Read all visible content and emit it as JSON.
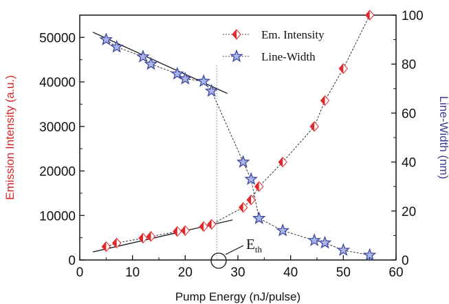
{
  "chart_data": {
    "type": "scatter",
    "title": "",
    "xlabel": "Pump Energy (nJ/pulse)",
    "ylabel_left": "Emission Intensity (a.u.)",
    "ylabel_right": "Line-Width (nm)",
    "xlim": [
      0,
      60
    ],
    "ylim_left": [
      0,
      55000
    ],
    "ylim_right": [
      0,
      100
    ],
    "xticks": [
      "0",
      "10",
      "20",
      "30",
      "40",
      "50",
      "60"
    ],
    "yticks_left": [
      "0",
      "10000",
      "20000",
      "30000",
      "40000",
      "50000"
    ],
    "yticks_right": [
      "0",
      "20",
      "40",
      "60",
      "80",
      "100"
    ],
    "legend_placement": "top-right",
    "grid": false,
    "threshold_x": 26,
    "annotation": {
      "main": "E",
      "sub": "th"
    },
    "colors": {
      "intensity": "#e0272a",
      "linewidth": "#3c48a0",
      "left_label": "#d62728",
      "right_label": "#3c3c8c"
    },
    "series": [
      {
        "name": "Em. Intensity",
        "axis": "left",
        "marker": "diamond",
        "x": [
          5,
          7,
          12,
          13.5,
          18.5,
          20,
          23.5,
          25,
          31,
          32.5,
          34,
          38.5,
          44.5,
          46.5,
          50,
          55
        ],
        "y": [
          3000,
          3800,
          4900,
          5300,
          6400,
          6600,
          7500,
          8000,
          11800,
          13500,
          16500,
          22000,
          30000,
          35800,
          43000,
          55000
        ]
      },
      {
        "name": "Line-Width",
        "axis": "right",
        "marker": "star",
        "x": [
          5,
          7,
          12,
          13.5,
          18.5,
          20,
          23.5,
          25,
          31,
          32.5,
          34,
          38.5,
          44.5,
          46.5,
          50,
          55
        ],
        "y": [
          90,
          87,
          83,
          80,
          76,
          74,
          73,
          69,
          40,
          33,
          17,
          12,
          8,
          7,
          4,
          2
        ]
      }
    ],
    "fit_lines": [
      {
        "axis": "left",
        "x": [
          2.5,
          29
        ],
        "y": [
          1800,
          9000
        ]
      },
      {
        "axis": "right",
        "x": [
          2.5,
          28
        ],
        "y": [
          93,
          68
        ]
      }
    ]
  }
}
